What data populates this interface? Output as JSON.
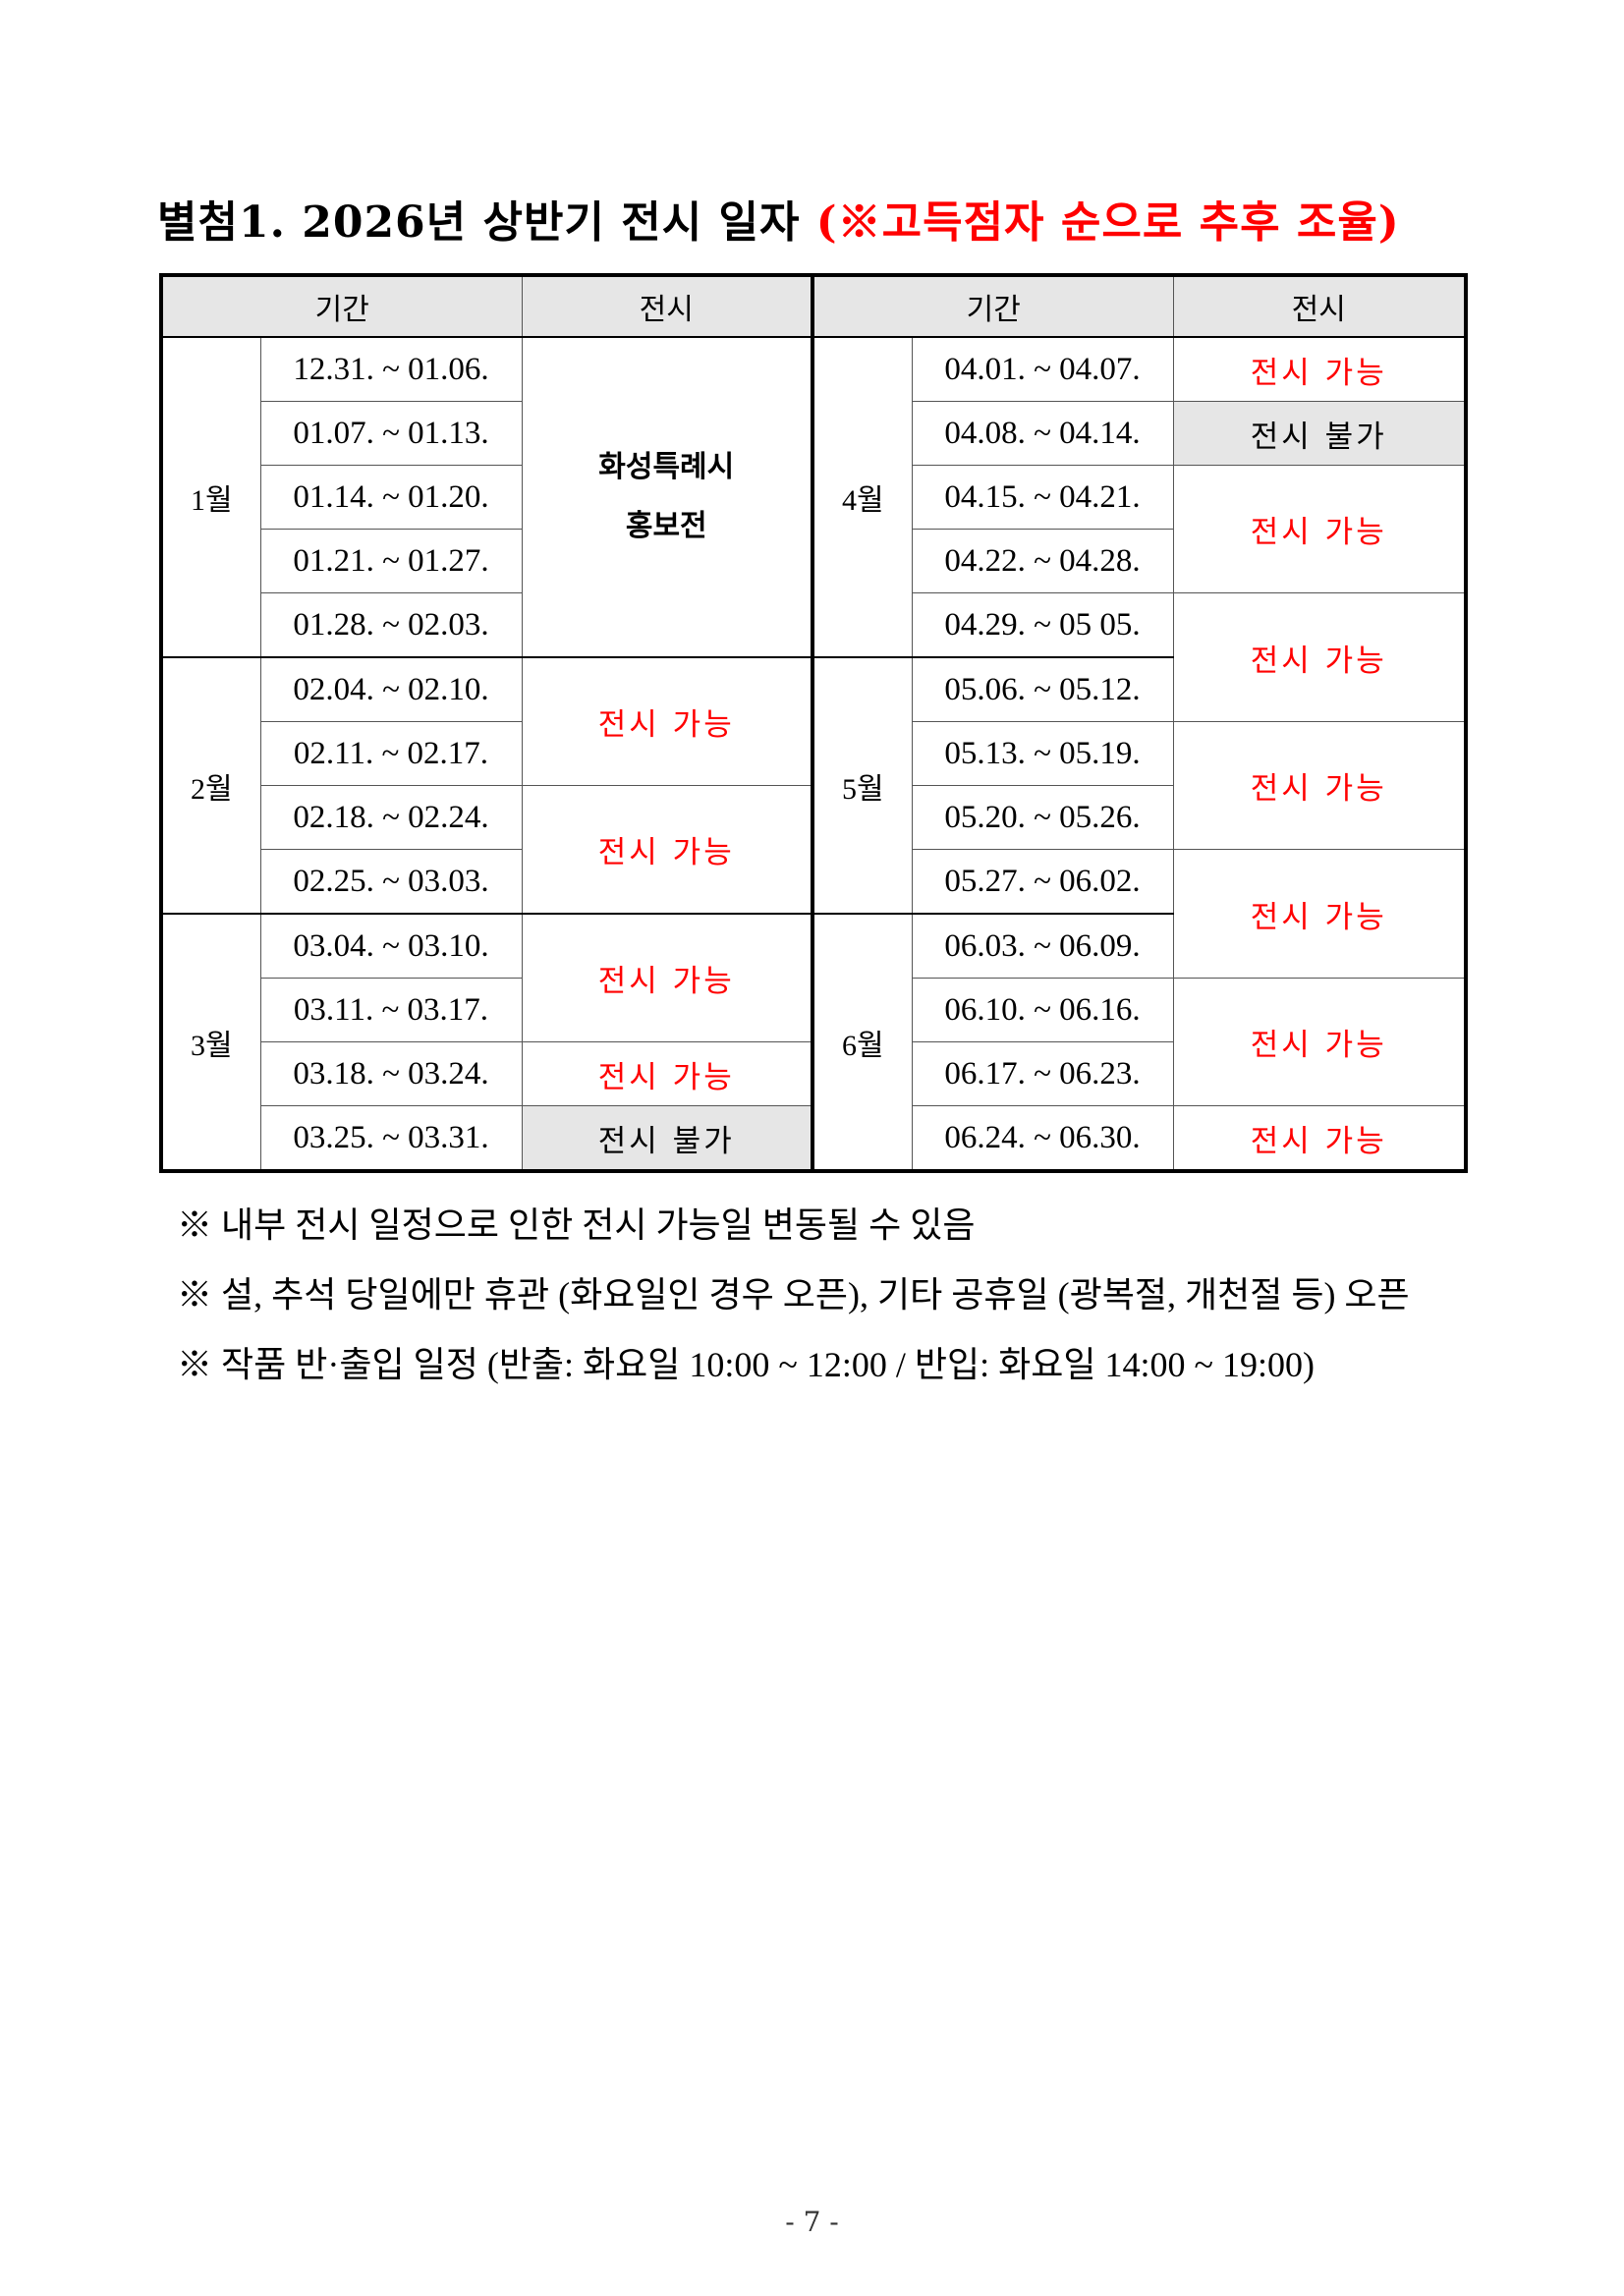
{
  "title": {
    "main": "별첨1. 2026년 상반기 전시 일자 ",
    "note": "(※고득점자 순으로 추후 조율)"
  },
  "colors": {
    "available": "#ff0000",
    "unavailable_bg": "#e6e6e6"
  },
  "table": {
    "headers": [
      "기간",
      "전시",
      "기간",
      "전시"
    ],
    "months": {
      "jan": "1월",
      "feb": "2월",
      "mar": "3월",
      "apr": "4월",
      "may": "5월",
      "jun": "6월"
    },
    "left_periods": [
      "12.31. ~ 01.06.",
      "01.07. ~ 01.13.",
      "01.14. ~ 01.20.",
      "01.21. ~ 01.27.",
      "01.28. ~ 02.03.",
      "02.04. ~ 02.10.",
      "02.11. ~ 02.17.",
      "02.18. ~ 02.24.",
      "02.25. ~ 03.03.",
      "03.04. ~ 03.10.",
      "03.11. ~ 03.17.",
      "03.18. ~ 03.24.",
      "03.25. ~ 03.31."
    ],
    "right_periods": [
      "04.01. ~ 04.07.",
      "04.08. ~ 04.14.",
      "04.15. ~ 04.21.",
      "04.22. ~ 04.28.",
      "04.29. ~ 05 05.",
      "05.06. ~ 05.12.",
      "05.13. ~ 05.19.",
      "05.20. ~ 05.26.",
      "05.27. ~ 06.02.",
      "06.03. ~ 06.09.",
      "06.10. ~ 06.16.",
      "06.17. ~ 06.23.",
      "06.24. ~ 06.30."
    ],
    "promo_line1": "화성특례시",
    "promo_line2": "홍보전",
    "available": "전시 가능",
    "unavailable": "전시 불가"
  },
  "notes": [
    "※ 내부 전시 일정으로 인한 전시 가능일 변동될 수 있음",
    "※ 설, 추석 당일에만 휴관 (화요일인 경우 오픈), 기타 공휴일 (광복절, 개천절 등) 오픈",
    "※ 작품 반·출입 일정 (반출: 화요일 10:00 ~ 12:00 / 반입: 화요일 14:00 ~ 19:00)"
  ],
  "footer": "- 7 -"
}
